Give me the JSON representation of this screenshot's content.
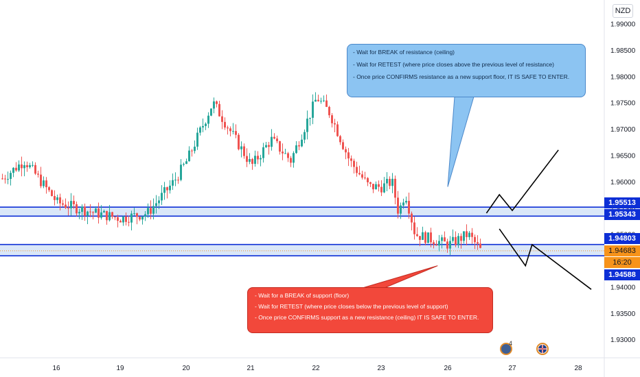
{
  "currency": "NZD",
  "colors": {
    "up": "#26a69a",
    "down": "#ef5350",
    "zone_fill": "#d6e4f7",
    "zone_line": "#0d2fd6",
    "price_tag_bg": "#0d2fd6",
    "current_tag_bg": "#f7931a",
    "callout_blue": "#8cc4f2",
    "callout_red": "#f2483b"
  },
  "callouts": {
    "resistance": [
      "- Wait for BREAK of resistance (ceiling)",
      "- Wait for RETEST (where price closes above the previous level of resistance)",
      "- Once price CONFIRMS resistance as a new support floor, IT IS SAFE TO ENTER."
    ],
    "support": [
      "- Wait for a BREAK of support (floor)",
      "- Wait for RETEST (where price closes below the previous level of support)",
      "- Once price CONFIRMS support as a new resistance (ceiling) IT IS SAFE TO ENTER."
    ]
  },
  "price_tags": {
    "zone_top_upper": "1.95513",
    "zone_top_lower": "1.95343",
    "zone_bottom_upper": "1.94803",
    "current": "1.94683",
    "countdown": "16:20",
    "zone_bottom_lower": "1.94588"
  },
  "event_icons": {
    "count_label": "4"
  },
  "chart_data": {
    "type": "candlestick",
    "title": "",
    "xlabel": "",
    "ylabel": "",
    "ylim": [
      1.9265,
      1.9945
    ],
    "y_ticks": [
      "1.93000",
      "1.93500",
      "1.94000",
      "1.94500",
      "1.95000",
      "1.95500",
      "1.96000",
      "1.96500",
      "1.97000",
      "1.97500",
      "1.98000",
      "1.98500",
      "1.99000"
    ],
    "x_ticks": [
      "16",
      "19",
      "20",
      "21",
      "22",
      "23",
      "26",
      "27",
      "28"
    ],
    "zones": [
      {
        "name": "resistance",
        "upper": 1.95513,
        "lower": 1.95343
      },
      {
        "name": "support",
        "upper": 1.94803,
        "lower": 1.94588
      }
    ],
    "anchors": [
      [
        "15",
        1.959
      ],
      [
        "15.5",
        1.964
      ],
      [
        "16",
        1.956
      ],
      [
        "16.6",
        1.954
      ],
      [
        "19",
        1.953
      ],
      [
        "19.4",
        1.954
      ],
      [
        "19.8",
        1.96
      ],
      [
        "20",
        1.964
      ],
      [
        "20.4",
        1.975
      ],
      [
        "20.7",
        1.969
      ],
      [
        "21",
        1.963
      ],
      [
        "21.3",
        1.968
      ],
      [
        "21.6",
        1.964
      ],
      [
        "21.8",
        1.97
      ],
      [
        "22",
        1.976
      ],
      [
        "22.2",
        1.973
      ],
      [
        "22.5",
        1.964
      ],
      [
        "22.8",
        1.959
      ],
      [
        "23",
        1.959
      ],
      [
        "23.3",
        1.96
      ],
      [
        "23.5",
        1.954
      ],
      [
        "23.7",
        1.958
      ],
      [
        "24",
        1.95
      ],
      [
        "26",
        1.948
      ],
      [
        "26.3",
        1.95
      ],
      [
        "26.5",
        1.9468
      ]
    ],
    "projections": [
      {
        "name": "bullish-path",
        "points": [
          [
            "26.6",
            1.954
          ],
          [
            "26.8",
            1.9575
          ],
          [
            "27",
            1.9545
          ],
          [
            "27.7",
            1.966
          ]
        ]
      },
      {
        "name": "bearish-path",
        "points": [
          [
            "26.8",
            1.951
          ],
          [
            "27.2",
            1.944
          ],
          [
            "27.3",
            1.948
          ],
          [
            "28.2",
            1.9395
          ]
        ]
      }
    ],
    "pointers": [
      {
        "name": "resistance-callout-pointer",
        "target": [
          "26",
          1.959
        ]
      },
      {
        "name": "support-callout-pointer",
        "target": [
          "24.7",
          1.944
        ]
      }
    ]
  }
}
